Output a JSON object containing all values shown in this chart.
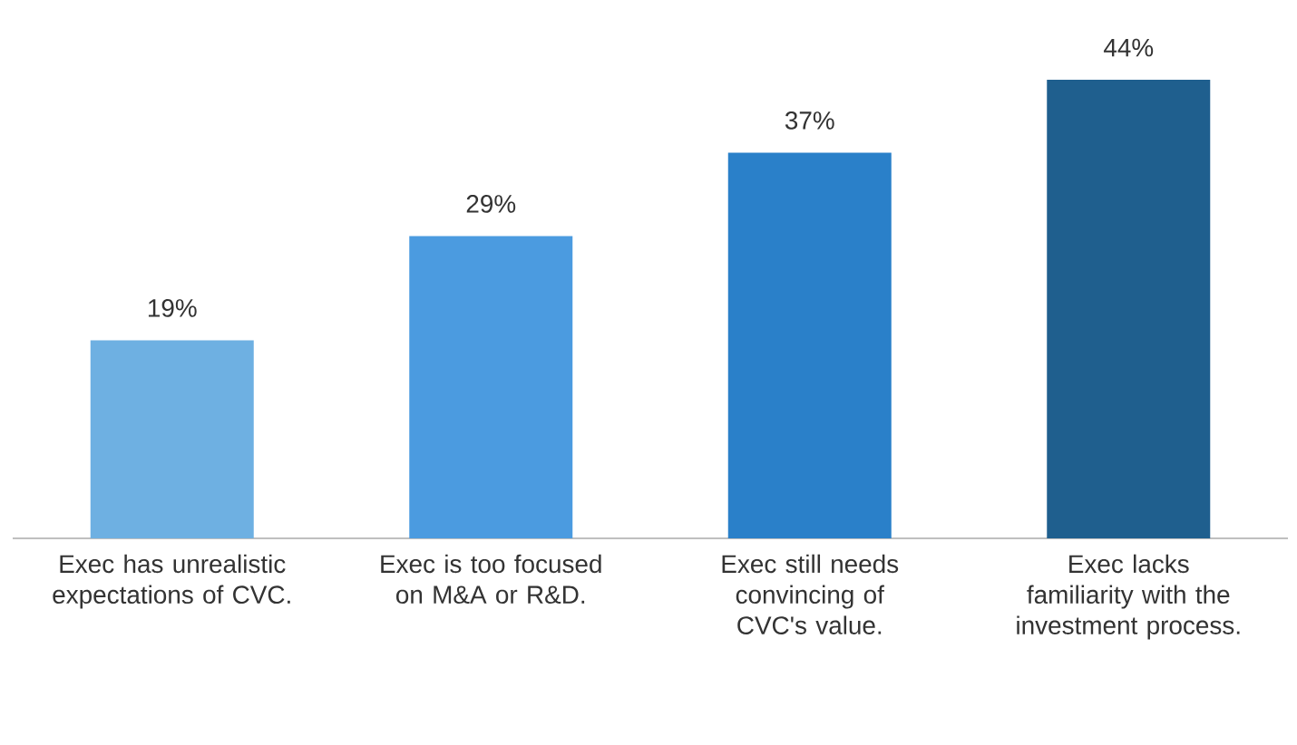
{
  "chart_data": {
    "type": "bar",
    "categories": [
      "Exec has unrealistic expectations of CVC.",
      "Exec is too focused on M&A or R&D.",
      "Exec still needs convincing of CVC's value.",
      "Exec lacks familiarity with the investment process."
    ],
    "values": [
      19,
      29,
      37,
      44
    ],
    "value_labels": [
      "19%",
      "29%",
      "37%",
      "44%"
    ],
    "colors": [
      "#6eb0e2",
      "#4b9be0",
      "#2a80c9",
      "#1f5f8e"
    ]
  }
}
